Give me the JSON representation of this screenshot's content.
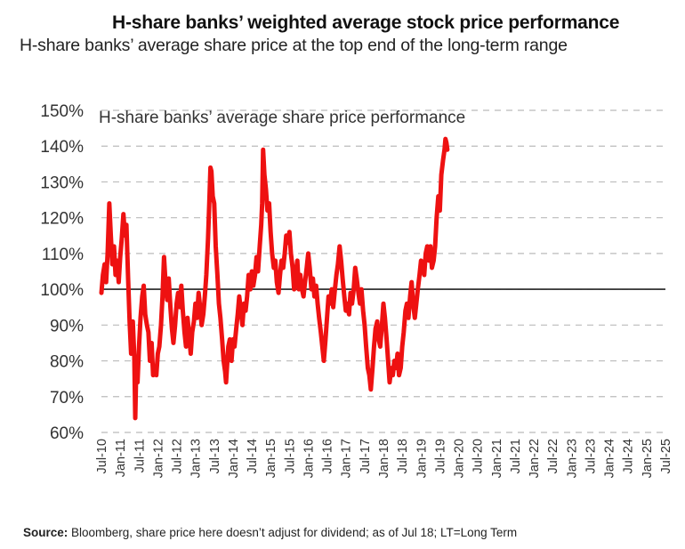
{
  "header": {
    "title": "H-share banks’ weighted average stock price performance",
    "subtitle": "H-share banks’ average share price at the top end of the long-term range"
  },
  "footer": {
    "source_label": "Source:",
    "source_text": " Bloomberg, share price here doesn’t adjust for dividend; as of Jul 18; LT=Long Term"
  },
  "colors": {
    "series": "#ee1111",
    "reference_line": "#222222",
    "grid": "#bbbbbb"
  },
  "chart_data": {
    "type": "line",
    "title": "H-share banks’ average share price performance",
    "xlabel": "",
    "ylabel": "",
    "ylim": [
      60,
      150
    ],
    "yticks": [
      "60%",
      "70%",
      "80%",
      "90%",
      "100%",
      "110%",
      "120%",
      "130%",
      "140%",
      "150%"
    ],
    "grid": true,
    "grid_style": "dashed horizontal",
    "reference_line": 100,
    "x_ticks": [
      "Jul-10",
      "Jan-11",
      "Jul-11",
      "Jan-12",
      "Jul-12",
      "Jan-13",
      "Jul-13",
      "Jan-14",
      "Jul-14",
      "Jan-15",
      "Jul-15",
      "Jan-16",
      "Jul-16",
      "Jan-17",
      "Jul-17",
      "Jan-18",
      "Jul-18",
      "Jan-19",
      "Jul-19",
      "Jan-20",
      "Jul-20",
      "Jan-21",
      "Jul-21",
      "Jan-22",
      "Jul-22",
      "Jan-23",
      "Jul-23",
      "Jan-24",
      "Jul-24",
      "Jan-25",
      "Jul-25"
    ],
    "series": [
      {
        "values": [
          [
            0,
            99
          ],
          [
            0.08,
            104
          ],
          [
            0.17,
            107
          ],
          [
            0.25,
            102
          ],
          [
            0.33,
            110
          ],
          [
            0.42,
            124
          ],
          [
            0.5,
            115
          ],
          [
            0.58,
            107
          ],
          [
            0.67,
            112
          ],
          [
            0.75,
            104
          ],
          [
            0.83,
            108
          ],
          [
            0.92,
            102
          ],
          [
            1.0,
            109
          ],
          [
            1.08,
            114
          ],
          [
            1.17,
            121
          ],
          [
            1.25,
            115
          ],
          [
            1.33,
            118
          ],
          [
            1.42,
            103
          ],
          [
            1.5,
            91
          ],
          [
            1.58,
            82
          ],
          [
            1.67,
            91
          ],
          [
            1.75,
            81
          ],
          [
            1.8,
            64
          ],
          [
            1.85,
            77
          ],
          [
            1.92,
            74
          ],
          [
            2.0,
            84
          ],
          [
            2.08,
            92
          ],
          [
            2.17,
            98
          ],
          [
            2.25,
            101
          ],
          [
            2.33,
            93
          ],
          [
            2.42,
            90
          ],
          [
            2.5,
            88
          ],
          [
            2.58,
            80
          ],
          [
            2.67,
            85
          ],
          [
            2.75,
            76
          ],
          [
            2.83,
            78
          ],
          [
            2.92,
            76
          ],
          [
            3.0,
            82
          ],
          [
            3.08,
            84
          ],
          [
            3.17,
            90
          ],
          [
            3.25,
            98
          ],
          [
            3.33,
            109
          ],
          [
            3.42,
            101
          ],
          [
            3.5,
            97
          ],
          [
            3.58,
            103
          ],
          [
            3.67,
            95
          ],
          [
            3.75,
            89
          ],
          [
            3.83,
            85
          ],
          [
            3.92,
            90
          ],
          [
            4.0,
            96
          ],
          [
            4.08,
            99
          ],
          [
            4.17,
            95
          ],
          [
            4.25,
            101
          ],
          [
            4.33,
            94
          ],
          [
            4.42,
            88
          ],
          [
            4.5,
            84
          ],
          [
            4.58,
            92
          ],
          [
            4.67,
            87
          ],
          [
            4.75,
            82
          ],
          [
            4.83,
            88
          ],
          [
            4.92,
            91
          ],
          [
            5.0,
            96
          ],
          [
            5.08,
            92
          ],
          [
            5.17,
            99
          ],
          [
            5.25,
            95
          ],
          [
            5.33,
            90
          ],
          [
            5.42,
            93
          ],
          [
            5.5,
            98
          ],
          [
            5.58,
            104
          ],
          [
            5.67,
            114
          ],
          [
            5.75,
            126
          ],
          [
            5.8,
            134
          ],
          [
            5.85,
            133
          ],
          [
            5.92,
            126
          ],
          [
            6.0,
            124
          ],
          [
            6.08,
            112
          ],
          [
            6.17,
            104
          ],
          [
            6.25,
            96
          ],
          [
            6.33,
            92
          ],
          [
            6.42,
            86
          ],
          [
            6.5,
            80
          ],
          [
            6.58,
            77
          ],
          [
            6.63,
            74
          ],
          [
            6.7,
            80
          ],
          [
            6.75,
            84
          ],
          [
            6.83,
            86
          ],
          [
            6.92,
            80
          ],
          [
            7.0,
            86
          ],
          [
            7.08,
            84
          ],
          [
            7.17,
            89
          ],
          [
            7.25,
            93
          ],
          [
            7.33,
            98
          ],
          [
            7.42,
            94
          ],
          [
            7.5,
            90
          ],
          [
            7.58,
            96
          ],
          [
            7.67,
            94
          ],
          [
            7.75,
            98
          ],
          [
            7.83,
            104
          ],
          [
            7.92,
            100
          ],
          [
            8.0,
            105
          ],
          [
            8.08,
            101
          ],
          [
            8.17,
            104
          ],
          [
            8.25,
            109
          ],
          [
            8.33,
            105
          ],
          [
            8.42,
            112
          ],
          [
            8.5,
            118
          ],
          [
            8.55,
            124
          ],
          [
            8.6,
            139
          ],
          [
            8.67,
            132
          ],
          [
            8.75,
            128
          ],
          [
            8.83,
            122
          ],
          [
            8.92,
            124
          ],
          [
            9.0,
            116
          ],
          [
            9.08,
            110
          ],
          [
            9.17,
            106
          ],
          [
            9.25,
            108
          ],
          [
            9.33,
            102
          ],
          [
            9.42,
            99
          ],
          [
            9.5,
            104
          ],
          [
            9.58,
            108
          ],
          [
            9.67,
            106
          ],
          [
            9.75,
            110
          ],
          [
            9.83,
            115
          ],
          [
            9.92,
            113
          ],
          [
            10.0,
            116
          ],
          [
            10.08,
            110
          ],
          [
            10.17,
            106
          ],
          [
            10.25,
            100
          ],
          [
            10.33,
            104
          ],
          [
            10.42,
            108
          ],
          [
            10.5,
            100
          ],
          [
            10.58,
            104
          ],
          [
            10.67,
            100
          ],
          [
            10.75,
            98
          ],
          [
            10.83,
            102
          ],
          [
            10.92,
            106
          ],
          [
            11.0,
            110
          ],
          [
            11.08,
            106
          ],
          [
            11.17,
            100
          ],
          [
            11.25,
            103
          ],
          [
            11.33,
            98
          ],
          [
            11.42,
            101
          ],
          [
            11.5,
            96
          ],
          [
            11.58,
            92
          ],
          [
            11.67,
            88
          ],
          [
            11.75,
            84
          ],
          [
            11.83,
            80
          ],
          [
            11.92,
            86
          ],
          [
            12.0,
            92
          ],
          [
            12.08,
            98
          ],
          [
            12.17,
            96
          ],
          [
            12.25,
            100
          ],
          [
            12.33,
            95
          ],
          [
            12.42,
            100
          ],
          [
            12.5,
            104
          ],
          [
            12.58,
            107
          ],
          [
            12.67,
            112
          ],
          [
            12.75,
            108
          ],
          [
            12.83,
            103
          ],
          [
            12.92,
            98
          ],
          [
            13.0,
            94
          ],
          [
            13.08,
            96
          ],
          [
            13.17,
            93
          ],
          [
            13.25,
            99
          ],
          [
            13.33,
            96
          ],
          [
            13.42,
            100
          ],
          [
            13.5,
            106
          ],
          [
            13.58,
            103
          ],
          [
            13.67,
            99
          ],
          [
            13.75,
            96
          ],
          [
            13.83,
            100
          ],
          [
            13.92,
            94
          ],
          [
            14.0,
            90
          ],
          [
            14.08,
            84
          ],
          [
            14.17,
            78
          ],
          [
            14.25,
            76
          ],
          [
            14.33,
            72
          ],
          [
            14.42,
            78
          ],
          [
            14.5,
            84
          ],
          [
            14.58,
            89
          ],
          [
            14.67,
            91
          ],
          [
            14.75,
            86
          ],
          [
            14.83,
            84
          ],
          [
            14.92,
            90
          ],
          [
            15.0,
            96
          ],
          [
            15.08,
            92
          ],
          [
            15.17,
            86
          ],
          [
            15.25,
            80
          ],
          [
            15.33,
            74
          ],
          [
            15.42,
            78
          ],
          [
            15.5,
            76
          ],
          [
            15.58,
            80
          ],
          [
            15.67,
            78
          ],
          [
            15.75,
            82
          ],
          [
            15.83,
            76
          ],
          [
            15.92,
            78
          ],
          [
            16.0,
            84
          ],
          [
            16.08,
            88
          ],
          [
            16.17,
            94
          ],
          [
            16.25,
            96
          ],
          [
            16.33,
            92
          ],
          [
            16.42,
            98
          ],
          [
            16.5,
            102
          ],
          [
            16.58,
            96
          ],
          [
            16.67,
            92
          ],
          [
            16.75,
            96
          ],
          [
            16.83,
            100
          ],
          [
            16.92,
            104
          ],
          [
            17.0,
            108
          ],
          [
            17.08,
            106
          ],
          [
            17.17,
            104
          ],
          [
            17.25,
            110
          ],
          [
            17.33,
            112
          ],
          [
            17.42,
            108
          ],
          [
            17.5,
            112
          ],
          [
            17.58,
            106
          ],
          [
            17.67,
            108
          ],
          [
            17.75,
            112
          ],
          [
            17.83,
            120
          ],
          [
            17.92,
            126
          ],
          [
            18.0,
            122
          ],
          [
            18.08,
            132
          ],
          [
            18.17,
            136
          ],
          [
            18.25,
            139
          ],
          [
            18.3,
            142
          ],
          [
            18.35,
            141
          ],
          [
            18.4,
            139
          ]
        ]
      }
    ]
  }
}
